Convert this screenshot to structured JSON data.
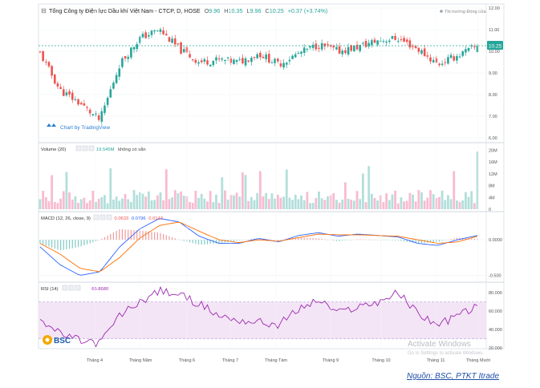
{
  "header": {
    "collapse_glyph": "⊟",
    "symbol_title": "Tổng Công ty Điện lực Dầu khí Việt Nam - CTCP, D, HOSE",
    "ohlc": {
      "o_label": "O",
      "o": "9.96",
      "h_label": "H",
      "h": "10.35",
      "l_label": "L",
      "l": "9.96",
      "c_label": "C",
      "c": "10.25",
      "change": "+0.37 (+3.74%)"
    },
    "market_status": "Thị trường Đóng cửa",
    "attribution": "Chart by TradingView",
    "last_price_tag": "10.25"
  },
  "price_axis": {
    "ticks": [
      "12.00",
      "11.00",
      "10.00",
      "9.00",
      "8.00",
      "7.00",
      "6.00"
    ]
  },
  "volume_pane": {
    "title": "Volume (20)",
    "value": "19.545M",
    "note": "không có sẵn",
    "ticks": [
      "20M",
      "16M",
      "12M",
      "8M",
      "4M",
      "0"
    ]
  },
  "macd_pane": {
    "title": "MACD (12, 26, close, 9)",
    "v1": "0.0633",
    "v2": "0.0796",
    "v3": "0.0143",
    "ticks": [
      "0.0000",
      "-0.500"
    ]
  },
  "rsi_pane": {
    "title": "RSI (14)",
    "value": "65.8680",
    "ticks": [
      "80.000",
      "60.000",
      "40.000",
      "20.000"
    ]
  },
  "x_axis": {
    "ticks": [
      "Tháng 4",
      "Tháng Năm",
      "Tháng 6",
      "Tháng 7",
      "Tháng Tám",
      "Tháng 9",
      "Tháng 10",
      "Tháng 11",
      "Tháng Mười"
    ]
  },
  "logo": {
    "text": "BSC"
  },
  "watermark": {
    "line1": "Activate Windows",
    "line2": "Go to Settings to activate Windows."
  },
  "source": {
    "text": "Nguồn: BSC, PTKT Itrade"
  },
  "colors": {
    "up": "#26a69a",
    "down": "#ef5350",
    "macd_line": "#2962ff",
    "signal_line": "#ff6d00",
    "rsi_line": "#9c27b0",
    "rsi_band": "#f3e5f5"
  },
  "chart_data": [
    {
      "type": "candlestick",
      "title": "Tổng Công ty Điện lực Dầu khí Việt Nam - CTCP, D, HOSE",
      "interval": "D",
      "ylim": [
        6,
        12
      ],
      "yticks": [
        12,
        11,
        10,
        9,
        8,
        7,
        6
      ],
      "x": [
        "Tháng 4",
        "Tháng Năm",
        "Tháng 6",
        "Tháng 7",
        "Tháng Tám",
        "Tháng 9",
        "Tháng 10",
        "Tháng 11",
        "Tháng Mười"
      ],
      "close_path": [
        9.9,
        8.2,
        7.6,
        6.8,
        9.4,
        10.6,
        11.0,
        10.1,
        9.5,
        9.6,
        9.5,
        9.9,
        9.4,
        9.9,
        10.3,
        10.0,
        10.2,
        10.5,
        10.6,
        10.1,
        9.4,
        9.8,
        10.25
      ],
      "last": {
        "open": 9.96,
        "high": 10.35,
        "low": 9.96,
        "close": 10.25
      }
    },
    {
      "type": "bar",
      "title": "Volume (20)",
      "ylim": [
        0,
        22
      ],
      "unit": "M",
      "last_value": 19.545
    },
    {
      "type": "line",
      "title": "MACD (12, 26, close, 9)",
      "ylim": [
        -0.55,
        0.35
      ],
      "series": [
        {
          "values": [
            -0.1,
            -0.35,
            -0.5,
            -0.45,
            -0.1,
            0.15,
            0.3,
            0.25,
            0.05,
            -0.05,
            -0.05,
            0.02,
            -0.03,
            0.06,
            0.1,
            0.05,
            0.08,
            0.06,
            0.04,
            -0.05,
            -0.08,
            0.0,
            0.06
          ]
        },
        {
          "values": [
            -0.05,
            -0.2,
            -0.4,
            -0.45,
            -0.25,
            0.02,
            0.2,
            0.25,
            0.12,
            0.0,
            -0.04,
            0.0,
            -0.02,
            0.03,
            0.08,
            0.07,
            0.07,
            0.06,
            0.05,
            0.0,
            -0.05,
            -0.03,
            0.05
          ]
        }
      ],
      "last_values": [
        0.0633,
        0.0796,
        0.0143
      ]
    },
    {
      "type": "line",
      "title": "RSI (14)",
      "ylim": [
        20,
        88
      ],
      "yticks": [
        80,
        60,
        40,
        20
      ],
      "series": [
        {
          "values": [
            52,
            35,
            28,
            25,
            55,
            70,
            82,
            78,
            68,
            55,
            50,
            48,
            45,
            62,
            72,
            58,
            65,
            70,
            80,
            58,
            45,
            55,
            65.868
          ]
        }
      ],
      "last_value": 65.868
    }
  ]
}
